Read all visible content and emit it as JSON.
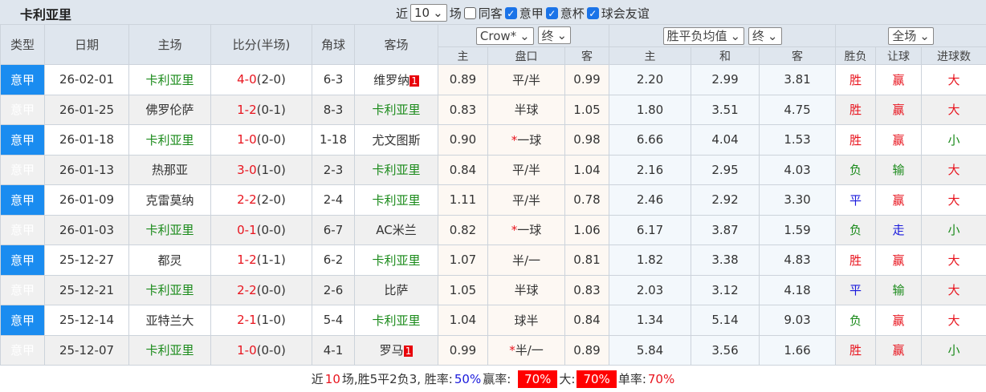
{
  "title": "卡利亚里",
  "filters": {
    "near": "近",
    "count": "10",
    "games": "场",
    "same_away": "同客",
    "leagues": [
      "意甲",
      "意杯",
      "球会友谊"
    ]
  },
  "headers": {
    "type": "类型",
    "date": "日期",
    "home": "主场",
    "score": "比分(半场)",
    "corner": "角球",
    "away": "客场",
    "ah_company": "Crow*",
    "ah_stage": "终",
    "eu_type": "胜平负均值",
    "eu_stage": "终",
    "scope": "全场",
    "ah_cols": [
      "主",
      "盘口",
      "客"
    ],
    "eu_cols": [
      "主",
      "和",
      "客"
    ],
    "res_cols": [
      "胜负",
      "让球",
      "进球数"
    ]
  },
  "colors": {
    "win": "#e8141e",
    "lose": "#1a8a1a",
    "draw": "#1a1adc",
    "league": "#1a8cf0"
  },
  "rows": [
    {
      "type": "意甲",
      "date": "26-02-01",
      "home": "卡利亚里",
      "score": "4-0",
      "half": "(2-0)",
      "corner": "6-3",
      "away": "维罗纳",
      "away_badge": "1",
      "ah": [
        "0.89",
        "平/半",
        "0.99"
      ],
      "star": false,
      "eu": [
        "2.20",
        "2.99",
        "3.81"
      ],
      "res": [
        "胜",
        "赢",
        "大"
      ]
    },
    {
      "type": "意甲",
      "date": "26-01-25",
      "home": "佛罗伦萨",
      "score": "1-2",
      "half": "(0-1)",
      "corner": "8-3",
      "away": "卡利亚里",
      "ah": [
        "0.83",
        "半球",
        "1.05"
      ],
      "star": false,
      "eu": [
        "1.80",
        "3.51",
        "4.75"
      ],
      "res": [
        "胜",
        "赢",
        "大"
      ]
    },
    {
      "type": "意甲",
      "date": "26-01-18",
      "home": "卡利亚里",
      "score": "1-0",
      "half": "(0-0)",
      "corner": "1-18",
      "away": "尤文图斯",
      "ah": [
        "0.90",
        "一球",
        "0.98"
      ],
      "star": true,
      "eu": [
        "6.66",
        "4.04",
        "1.53"
      ],
      "res": [
        "胜",
        "赢",
        "小"
      ]
    },
    {
      "type": "意甲",
      "date": "26-01-13",
      "home": "热那亚",
      "score": "3-0",
      "half": "(1-0)",
      "corner": "2-3",
      "away": "卡利亚里",
      "ah": [
        "0.84",
        "平/半",
        "1.04"
      ],
      "star": false,
      "eu": [
        "2.16",
        "2.95",
        "4.03"
      ],
      "res": [
        "负",
        "输",
        "大"
      ]
    },
    {
      "type": "意甲",
      "date": "26-01-09",
      "home": "克雷莫纳",
      "score": "2-2",
      "half": "(2-0)",
      "corner": "2-4",
      "away": "卡利亚里",
      "ah": [
        "1.11",
        "平/半",
        "0.78"
      ],
      "star": false,
      "eu": [
        "2.46",
        "2.92",
        "3.30"
      ],
      "res": [
        "平",
        "赢",
        "大"
      ]
    },
    {
      "type": "意甲",
      "date": "26-01-03",
      "home": "卡利亚里",
      "score": "0-1",
      "half": "(0-0)",
      "corner": "6-7",
      "away": "AC米兰",
      "ah": [
        "0.82",
        "一球",
        "1.06"
      ],
      "star": true,
      "eu": [
        "6.17",
        "3.87",
        "1.59"
      ],
      "res": [
        "负",
        "走",
        "小"
      ]
    },
    {
      "type": "意甲",
      "date": "25-12-27",
      "home": "都灵",
      "score": "1-2",
      "half": "(1-1)",
      "corner": "6-2",
      "away": "卡利亚里",
      "ah": [
        "1.07",
        "半/一",
        "0.81"
      ],
      "star": false,
      "eu": [
        "1.82",
        "3.38",
        "4.83"
      ],
      "res": [
        "胜",
        "赢",
        "大"
      ]
    },
    {
      "type": "意甲",
      "date": "25-12-21",
      "home": "卡利亚里",
      "score": "2-2",
      "half": "(0-0)",
      "corner": "2-6",
      "away": "比萨",
      "ah": [
        "1.05",
        "半球",
        "0.83"
      ],
      "star": false,
      "eu": [
        "2.03",
        "3.12",
        "4.18"
      ],
      "res": [
        "平",
        "输",
        "大"
      ]
    },
    {
      "type": "意甲",
      "date": "25-12-14",
      "home": "亚特兰大",
      "score": "2-1",
      "half": "(1-0)",
      "corner": "5-4",
      "away": "卡利亚里",
      "ah": [
        "1.04",
        "球半",
        "0.84"
      ],
      "star": false,
      "eu": [
        "1.34",
        "5.14",
        "9.03"
      ],
      "res": [
        "负",
        "赢",
        "大"
      ]
    },
    {
      "type": "意甲",
      "date": "25-12-07",
      "home": "卡利亚里",
      "score": "1-0",
      "half": "(0-0)",
      "corner": "4-1",
      "away": "罗马",
      "away_badge": "1",
      "ah": [
        "0.99",
        "半/一",
        "0.89"
      ],
      "star": true,
      "eu": [
        "5.84",
        "3.56",
        "1.66"
      ],
      "res": [
        "胜",
        "赢",
        "小"
      ]
    }
  ],
  "team": "卡利亚里",
  "summary": {
    "p1": "近",
    "n": "10",
    "p2": "场,胜5平2负3, 胜率:",
    "win_rate": "50%",
    "p3": " 赢率:",
    "cover_rate": "70%",
    "p4": " 大:",
    "over_rate": "70%",
    "p5": " 单率:",
    "odd_rate": "70%"
  }
}
